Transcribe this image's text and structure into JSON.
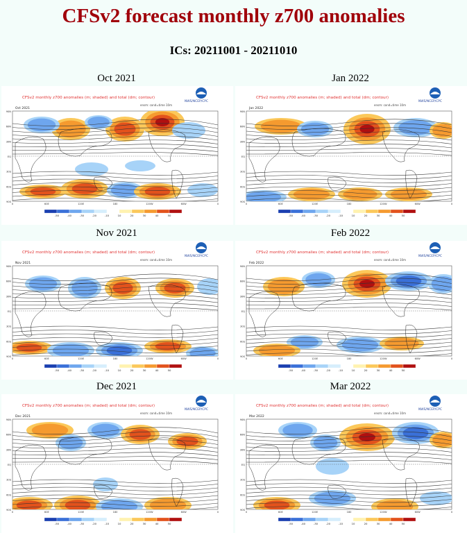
{
  "page": {
    "title": "CFSv2 forecast monthly z700 anomalies",
    "subtitle": "ICs: 20211001 - 20211010"
  },
  "panel_header": {
    "line1": "CFSv2 monthly z700 anomalies (m; shaded) and total (dm; contour)",
    "org": "NWS/NCEP/CPC",
    "ensemble": "ensm: cond=time 10m"
  },
  "lat_labels": [
    "90N",
    "60N",
    "30N",
    "EQ",
    "30S",
    "60S",
    "90S"
  ],
  "lon_labels": [
    "0",
    "60E",
    "120E",
    "180",
    "120W",
    "60W",
    "0"
  ],
  "colorbar_labels": [
    "-50",
    "-40",
    "-30",
    "-20",
    "-10",
    "10",
    "20",
    "30",
    "40",
    "50"
  ],
  "colors": {
    "title": "#a0000a",
    "background": "#f3fdfa",
    "scale": [
      "#1a3fb0",
      "#3a70d8",
      "#6ea6ee",
      "#a7d3f8",
      "#d6eefc",
      "#ffffff",
      "#fff2b0",
      "#fbc85a",
      "#f59a2f",
      "#e2521c",
      "#b01010"
    ]
  },
  "panels": [
    {
      "month": "Oct 2021",
      "tag": "Oct 2021"
    },
    {
      "month": "Jan 2022",
      "tag": "Jan 2022"
    },
    {
      "month": "Nov 2021",
      "tag": "Nov 2021"
    },
    {
      "month": "Feb 2022",
      "tag": "Feb 2022"
    },
    {
      "month": "Dec 2021",
      "tag": "Dec 2021"
    },
    {
      "month": "Mar 2022",
      "tag": "Mar 2022"
    }
  ]
}
